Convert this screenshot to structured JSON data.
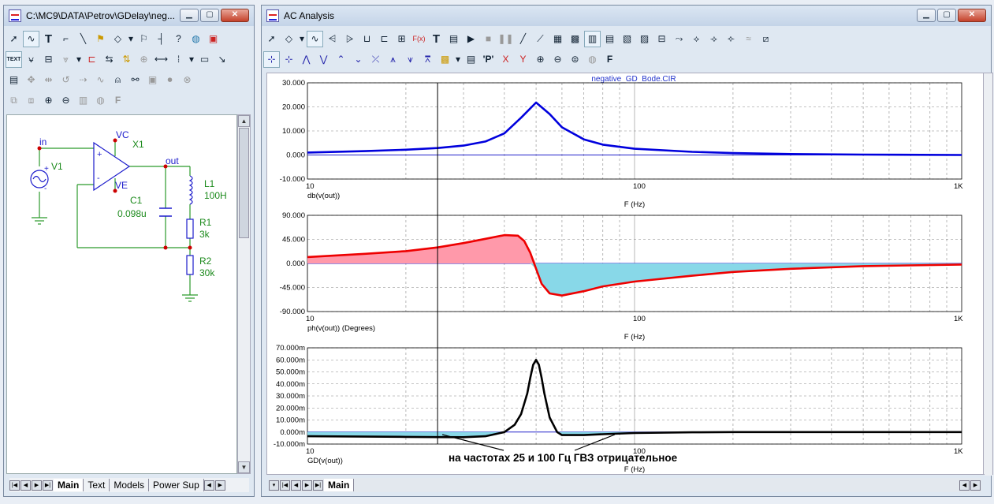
{
  "left_window": {
    "title": "C:\\MC9\\DATA\\Petrov\\GDelay\\neg...",
    "toolbar_text_icon": "TEXT",
    "tabs": [
      "Main",
      "Text",
      "Models",
      "Power Sup"
    ]
  },
  "schematic": {
    "labels": {
      "in": "in",
      "vc": "VC",
      "x1": "X1",
      "v1": "V1",
      "ve": "VE",
      "out": "out",
      "l1": "L1",
      "l1_val": "100H",
      "c1": "C1",
      "c1_val": "0.098u",
      "r1": "R1",
      "r1_val": "3k",
      "r2": "R2",
      "r2_val": "30k",
      "plus": "+",
      "minus": "-"
    }
  },
  "right_window": {
    "title": "AC Analysis",
    "tab": "Main"
  },
  "annotation": "на частотах 25 и 100 Гц ГВЗ отрицательное",
  "chart_data": [
    {
      "type": "line",
      "title": "negative_GD_Bode.CIR",
      "ylabel": "db(v(out))",
      "xlabel": "F (Hz)",
      "xscale": "log",
      "xlim": [
        10,
        1000
      ],
      "ylim": [
        -10,
        30
      ],
      "yticks": [
        "30.000",
        "20.000",
        "10.000",
        "0.000",
        "-10.000"
      ],
      "xticks": [
        "10",
        "100",
        "1K"
      ],
      "series": [
        {
          "color": "#0000dd",
          "x": [
            10,
            15,
            20,
            25,
            30,
            35,
            40,
            45,
            50,
            55,
            60,
            70,
            80,
            100,
            150,
            200,
            300,
            500,
            1000
          ],
          "y": [
            1.0,
            1.6,
            2.2,
            2.9,
            3.9,
            5.6,
            9.0,
            15.5,
            21.8,
            17.0,
            11.5,
            6.5,
            4.3,
            2.6,
            1.3,
            0.8,
            0.4,
            0.15,
            0.0
          ]
        }
      ]
    },
    {
      "type": "area",
      "ylabel": "ph(v(out)) (Degrees)",
      "xlabel": "F (Hz)",
      "xscale": "log",
      "xlim": [
        10,
        1000
      ],
      "ylim": [
        -90,
        90
      ],
      "yticks": [
        "90.000",
        "45.000",
        "0.000",
        "-45.000",
        "-90.000"
      ],
      "xticks": [
        "10",
        "100",
        "1K"
      ],
      "fill_positive": "#ff99aa",
      "fill_negative": "#88d8e8",
      "series": [
        {
          "color": "#ee0000",
          "x": [
            10,
            15,
            20,
            25,
            30,
            35,
            40,
            44,
            46,
            48,
            50,
            52,
            55,
            60,
            70,
            80,
            100,
            150,
            200,
            300,
            500,
            1000
          ],
          "y": [
            12,
            18,
            23,
            30,
            38,
            46,
            53,
            52,
            42,
            20,
            -10,
            -38,
            -56,
            -60,
            -52,
            -43,
            -34,
            -23,
            -16,
            -10,
            -5,
            -2
          ]
        }
      ]
    },
    {
      "type": "line",
      "ylabel": "GD(v(out))",
      "xlabel": "F (Hz)",
      "xscale": "log",
      "xlim": [
        10,
        1000
      ],
      "ylim": [
        -0.01,
        0.07
      ],
      "yticks": [
        "70.000m",
        "60.000m",
        "50.000m",
        "40.000m",
        "30.000m",
        "20.000m",
        "10.000m",
        "0.000m",
        "-10.000m"
      ],
      "xticks": [
        "10",
        "100",
        "1K"
      ],
      "fill_negative": "#88d8e8",
      "series": [
        {
          "color": "#000000",
          "x": [
            10,
            20,
            25,
            30,
            35,
            40,
            43,
            45,
            47,
            48,
            49,
            50,
            51,
            52,
            53,
            55,
            58,
            60,
            70,
            80,
            100,
            150,
            200,
            300,
            500,
            1000
          ],
          "y": [
            -0.0035,
            -0.004,
            -0.0042,
            -0.0043,
            -0.0035,
            0.0,
            0.006,
            0.015,
            0.032,
            0.045,
            0.056,
            0.06,
            0.056,
            0.045,
            0.032,
            0.012,
            0.0,
            -0.0025,
            -0.0025,
            -0.0018,
            -0.0008,
            -0.0002,
            0.0,
            0.0,
            0.0,
            0.0
          ]
        }
      ]
    }
  ]
}
